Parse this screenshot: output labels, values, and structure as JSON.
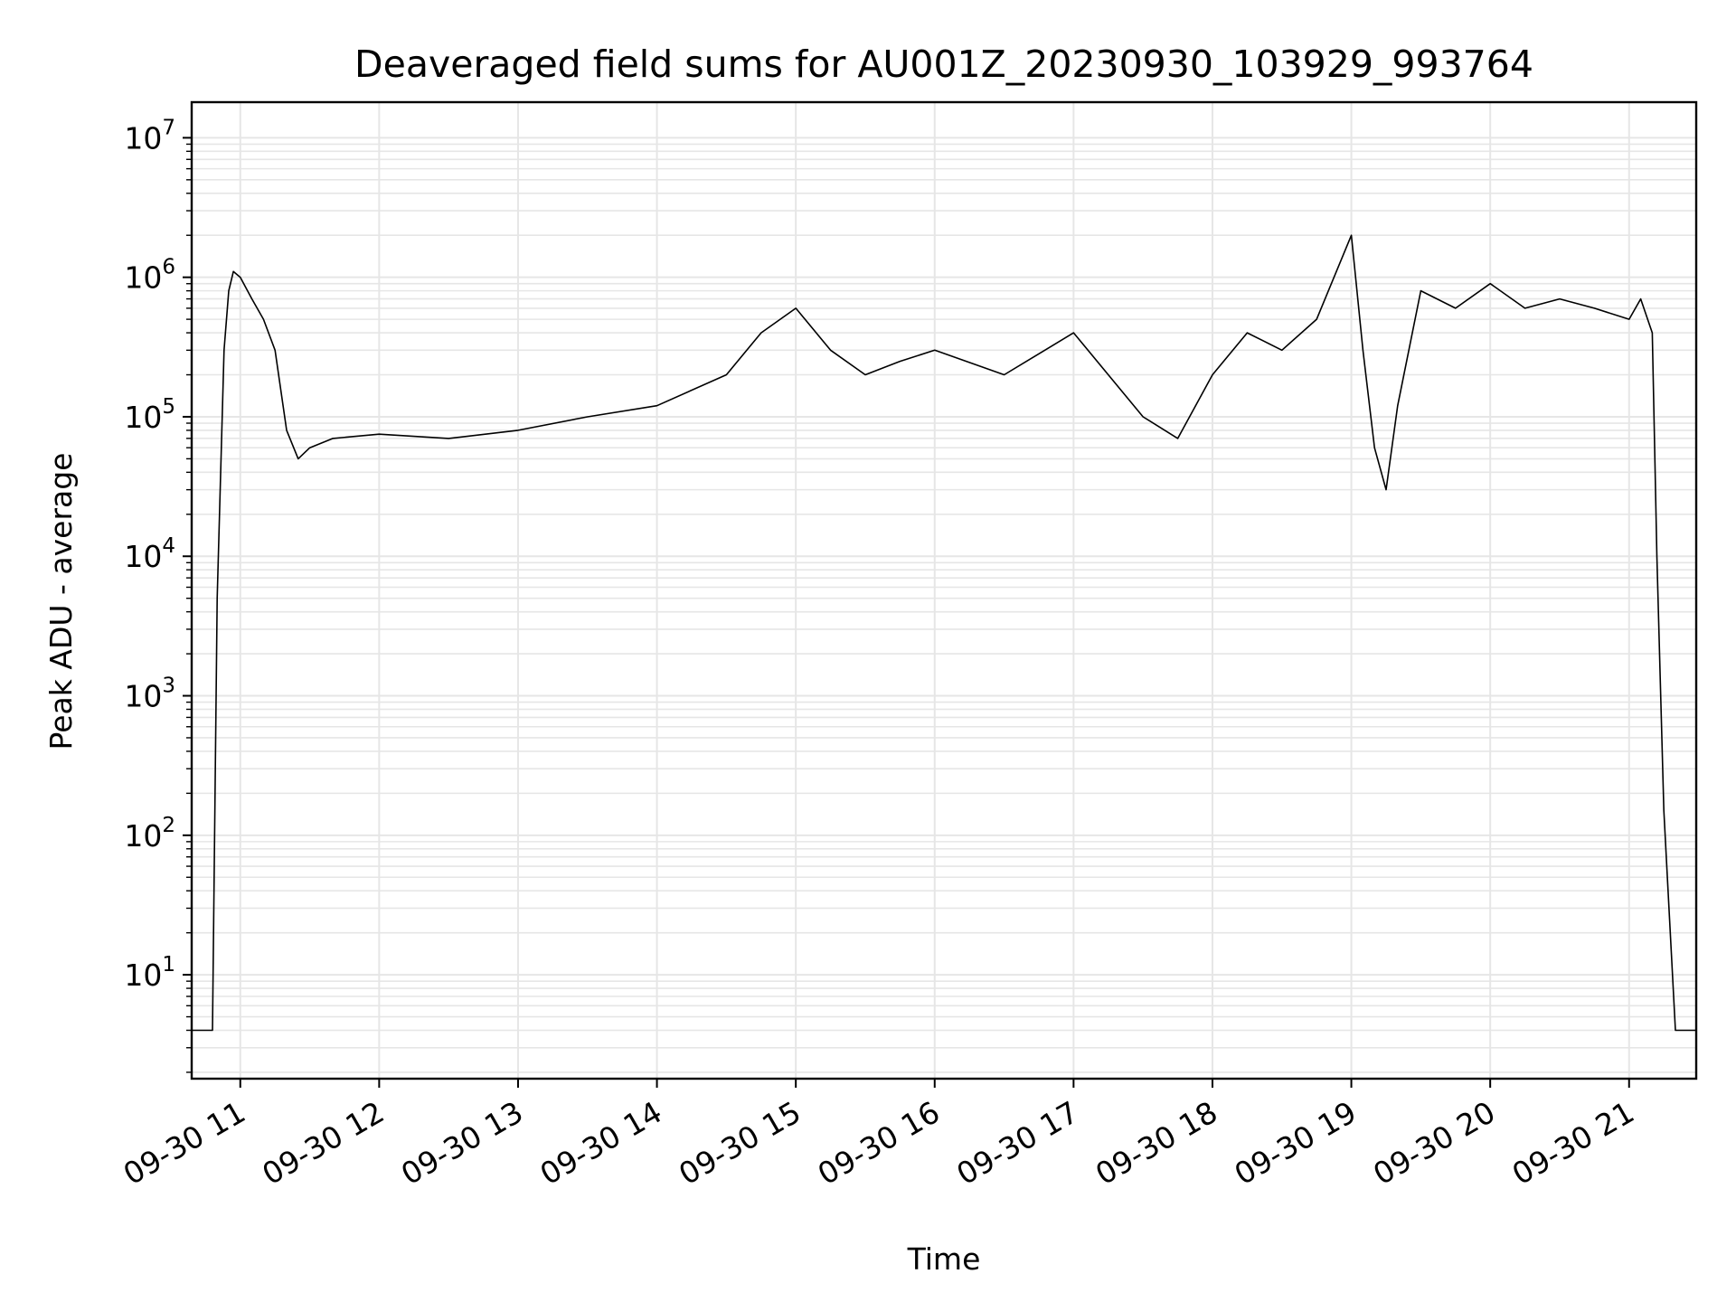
{
  "chart_data": {
    "type": "line",
    "title": "Deaveraged field sums for AU001Z_20230930_103929_993764",
    "xlabel": "Time",
    "ylabel": "Peak ADU - average",
    "yscale": "log",
    "grid": true,
    "ylim": [
      1.8,
      18000000
    ],
    "xlim": [
      "2023-09-30 10:39:00",
      "2023-09-30 21:29:00"
    ],
    "xticks": [
      "09-30 11",
      "09-30 12",
      "09-30 13",
      "09-30 14",
      "09-30 15",
      "09-30 16",
      "09-30 17",
      "09-30 18",
      "09-30 19",
      "09-30 20",
      "09-30 21"
    ],
    "xtick_times": [
      "2023-09-30 11:00",
      "2023-09-30 12:00",
      "2023-09-30 13:00",
      "2023-09-30 14:00",
      "2023-09-30 15:00",
      "2023-09-30 16:00",
      "2023-09-30 17:00",
      "2023-09-30 18:00",
      "2023-09-30 19:00",
      "2023-09-30 20:00",
      "2023-09-30 21:00"
    ],
    "yticks": [
      {
        "base": "10",
        "exp": "1",
        "value": 10
      },
      {
        "base": "10",
        "exp": "2",
        "value": 100
      },
      {
        "base": "10",
        "exp": "3",
        "value": 1000
      },
      {
        "base": "10",
        "exp": "4",
        "value": 10000
      },
      {
        "base": "10",
        "exp": "5",
        "value": 100000
      },
      {
        "base": "10",
        "exp": "6",
        "value": 1000000
      },
      {
        "base": "10",
        "exp": "7",
        "value": 10000000
      }
    ],
    "line_color": "#000000",
    "grid_color": "#e6e6e6",
    "series": [
      {
        "x": [
          "2023-09-30 10:39",
          "2023-09-30 10:45",
          "2023-09-30 10:48",
          "2023-09-30 10:50",
          "2023-09-30 10:53",
          "2023-09-30 10:55",
          "2023-09-30 10:57",
          "2023-09-30 11:00",
          "2023-09-30 11:05",
          "2023-09-30 11:10",
          "2023-09-30 11:15",
          "2023-09-30 11:20",
          "2023-09-30 11:25",
          "2023-09-30 11:30",
          "2023-09-30 11:40",
          "2023-09-30 12:00",
          "2023-09-30 12:30",
          "2023-09-30 13:00",
          "2023-09-30 13:30",
          "2023-09-30 14:00",
          "2023-09-30 14:30",
          "2023-09-30 14:45",
          "2023-09-30 15:00",
          "2023-09-30 15:15",
          "2023-09-30 15:30",
          "2023-09-30 15:45",
          "2023-09-30 16:00",
          "2023-09-30 16:30",
          "2023-09-30 17:00",
          "2023-09-30 17:30",
          "2023-09-30 17:45",
          "2023-09-30 18:00",
          "2023-09-30 18:15",
          "2023-09-30 18:30",
          "2023-09-30 18:45",
          "2023-09-30 19:00",
          "2023-09-30 19:05",
          "2023-09-30 19:10",
          "2023-09-30 19:15",
          "2023-09-30 19:20",
          "2023-09-30 19:30",
          "2023-09-30 19:45",
          "2023-09-30 20:00",
          "2023-09-30 20:15",
          "2023-09-30 20:30",
          "2023-09-30 20:45",
          "2023-09-30 21:00",
          "2023-09-30 21:05",
          "2023-09-30 21:10",
          "2023-09-30 21:12",
          "2023-09-30 21:15",
          "2023-09-30 21:20",
          "2023-09-30 21:29"
        ],
        "y": [
          4,
          4,
          4,
          5000,
          300000,
          800000,
          1100000,
          1000000,
          700000,
          500000,
          300000,
          80000,
          50000,
          60000,
          70000,
          75000,
          70000,
          80000,
          100000,
          120000,
          200000,
          400000,
          600000,
          300000,
          200000,
          250000,
          300000,
          200000,
          400000,
          100000,
          70000,
          200000,
          400000,
          300000,
          500000,
          2000000,
          300000,
          60000,
          30000,
          120000,
          800000,
          600000,
          900000,
          600000,
          700000,
          600000,
          500000,
          700000,
          400000,
          10000,
          150,
          4,
          4
        ]
      }
    ]
  }
}
